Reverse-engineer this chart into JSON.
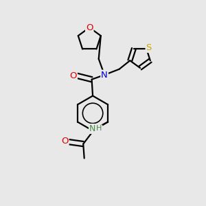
{
  "bg_color": "#e8e8e8",
  "atom_colors": {
    "C": "#000000",
    "N": "#0000cc",
    "O": "#dd0000",
    "S": "#ccaa00",
    "H": "#555555",
    "NH": "#4a8a4a"
  },
  "line_color": "#000000",
  "line_width": 1.6,
  "font_size": 9.5,
  "fig_size": [
    3.0,
    3.0
  ],
  "dpi": 100
}
